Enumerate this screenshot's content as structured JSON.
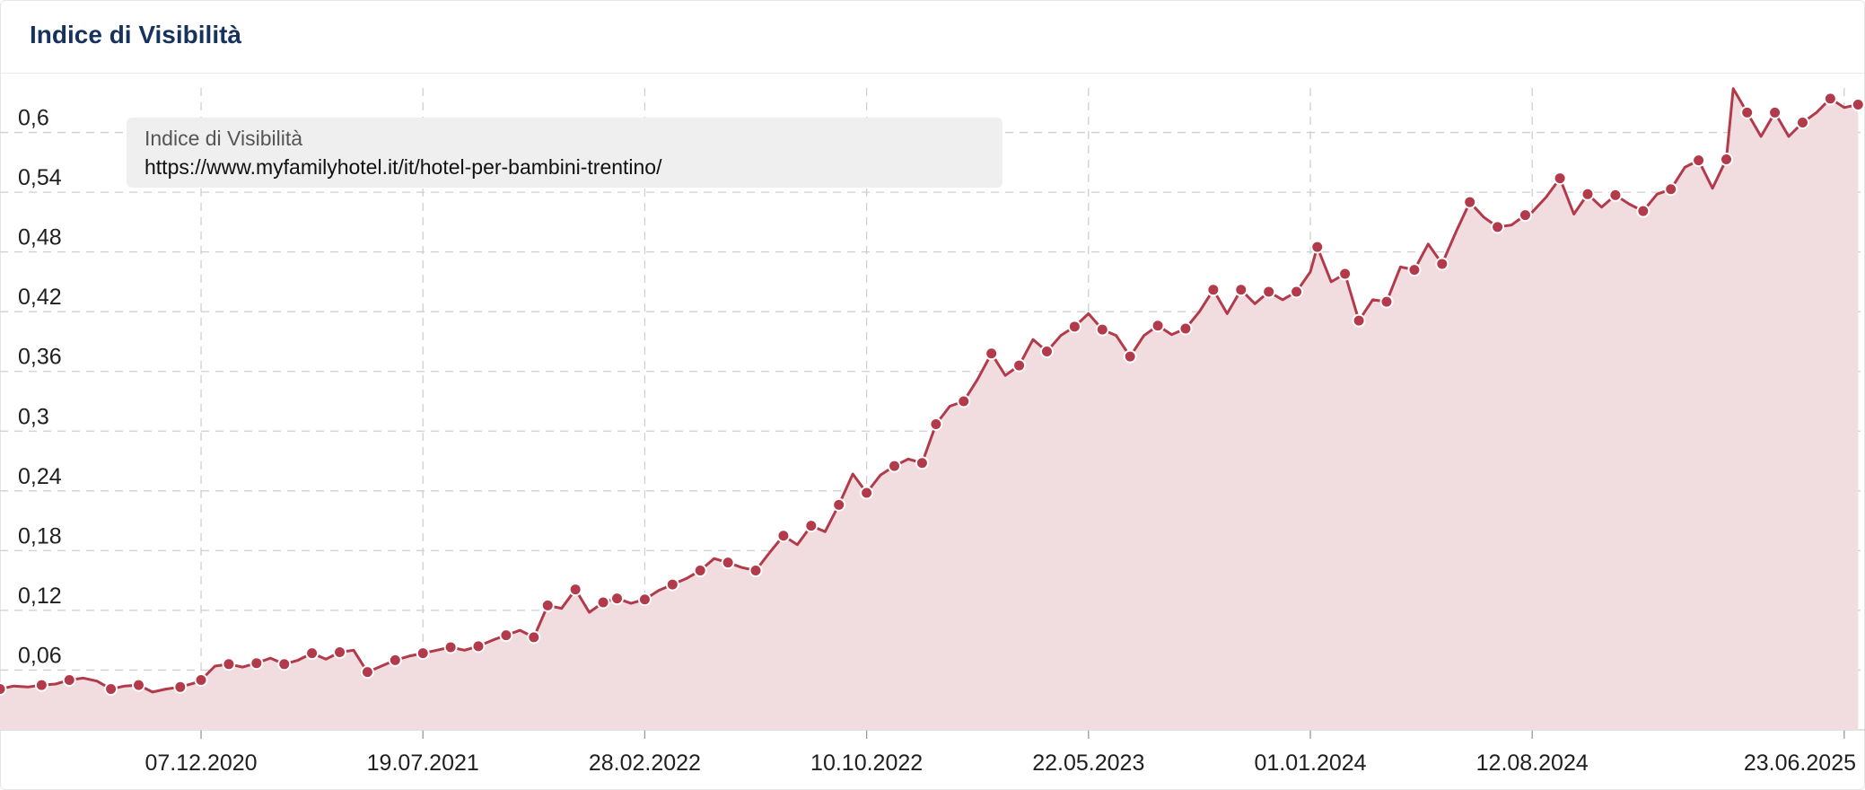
{
  "header": {
    "title": "Indice di Visibilità"
  },
  "colors": {
    "line": "#b23a4a",
    "area": "#f1dcdf",
    "grid": "#cfcfcf",
    "legend_bg": "#efefef",
    "title": "#17325c"
  },
  "legend": {
    "title": "Indice di Visibilità",
    "series": "https://www.myfamilyhotel.it/it/hotel-per-bambini-trentino/"
  },
  "chart_data": {
    "type": "area",
    "title": "Indice di Visibilità",
    "series_name": "https://www.myfamilyhotel.it/it/hotel-per-bambini-trentino/",
    "ylim": [
      0,
      0.66
    ],
    "y_ticks": [
      "0,06",
      "0,12",
      "0,18",
      "0,24",
      "0,3",
      "0,36",
      "0,42",
      "0,48",
      "0,54",
      "0,6"
    ],
    "y_tick_values": [
      0.06,
      0.12,
      0.18,
      0.24,
      0.3,
      0.36,
      0.42,
      0.48,
      0.54,
      0.6
    ],
    "x_ticks": [
      "07.12.2020",
      "19.07.2021",
      "28.02.2022",
      "10.10.2022",
      "22.05.2023",
      "01.01.2024",
      "12.08.2024",
      "23.06.2025"
    ],
    "xlim": [
      "2020-05-18",
      "2025-07-14"
    ],
    "grid": true,
    "legend_position": "top-left",
    "points": [
      [
        "2020-05-18",
        0.041
      ],
      [
        "2020-06-01",
        0.044
      ],
      [
        "2020-06-15",
        0.043
      ],
      [
        "2020-06-29",
        0.045
      ],
      [
        "2020-07-13",
        0.046
      ],
      [
        "2020-07-27",
        0.05
      ],
      [
        "2020-08-10",
        0.052
      ],
      [
        "2020-08-24",
        0.049
      ],
      [
        "2020-09-07",
        0.041
      ],
      [
        "2020-09-21",
        0.044
      ],
      [
        "2020-10-05",
        0.045
      ],
      [
        "2020-10-19",
        0.038
      ],
      [
        "2020-11-02",
        0.041
      ],
      [
        "2020-11-16",
        0.043
      ],
      [
        "2020-11-30",
        0.047
      ],
      [
        "2020-12-07",
        0.05
      ],
      [
        "2020-12-21",
        0.064
      ],
      [
        "2021-01-04",
        0.066
      ],
      [
        "2021-01-18",
        0.063
      ],
      [
        "2021-02-01",
        0.067
      ],
      [
        "2021-02-15",
        0.072
      ],
      [
        "2021-03-01",
        0.066
      ],
      [
        "2021-03-15",
        0.07
      ],
      [
        "2021-03-29",
        0.077
      ],
      [
        "2021-04-12",
        0.071
      ],
      [
        "2021-04-26",
        0.078
      ],
      [
        "2021-05-10",
        0.08
      ],
      [
        "2021-05-24",
        0.058
      ],
      [
        "2021-06-07",
        0.064
      ],
      [
        "2021-06-21",
        0.07
      ],
      [
        "2021-07-05",
        0.074
      ],
      [
        "2021-07-19",
        0.077
      ],
      [
        "2021-08-02",
        0.08
      ],
      [
        "2021-08-16",
        0.083
      ],
      [
        "2021-08-30",
        0.08
      ],
      [
        "2021-09-13",
        0.084
      ],
      [
        "2021-09-27",
        0.09
      ],
      [
        "2021-10-11",
        0.095
      ],
      [
        "2021-10-25",
        0.1
      ],
      [
        "2021-11-08",
        0.093
      ],
      [
        "2021-11-22",
        0.125
      ],
      [
        "2021-12-06",
        0.122
      ],
      [
        "2021-12-20",
        0.141
      ],
      [
        "2022-01-03",
        0.118
      ],
      [
        "2022-01-17",
        0.128
      ],
      [
        "2022-01-31",
        0.132
      ],
      [
        "2022-02-14",
        0.127
      ],
      [
        "2022-02-28",
        0.131
      ],
      [
        "2022-03-14",
        0.14
      ],
      [
        "2022-03-28",
        0.146
      ],
      [
        "2022-04-11",
        0.152
      ],
      [
        "2022-04-25",
        0.16
      ],
      [
        "2022-05-09",
        0.172
      ],
      [
        "2022-05-23",
        0.168
      ],
      [
        "2022-06-06",
        0.163
      ],
      [
        "2022-06-20",
        0.16
      ],
      [
        "2022-07-04",
        0.178
      ],
      [
        "2022-07-18",
        0.195
      ],
      [
        "2022-08-01",
        0.186
      ],
      [
        "2022-08-15",
        0.205
      ],
      [
        "2022-08-29",
        0.199
      ],
      [
        "2022-09-12",
        0.226
      ],
      [
        "2022-09-26",
        0.257
      ],
      [
        "2022-10-10",
        0.238
      ],
      [
        "2022-10-24",
        0.256
      ],
      [
        "2022-11-07",
        0.265
      ],
      [
        "2022-11-21",
        0.272
      ],
      [
        "2022-12-05",
        0.268
      ],
      [
        "2022-12-19",
        0.307
      ],
      [
        "2023-01-02",
        0.325
      ],
      [
        "2023-01-16",
        0.33
      ],
      [
        "2023-01-30",
        0.352
      ],
      [
        "2023-02-13",
        0.378
      ],
      [
        "2023-02-27",
        0.356
      ],
      [
        "2023-03-13",
        0.366
      ],
      [
        "2023-03-27",
        0.392
      ],
      [
        "2023-04-10",
        0.38
      ],
      [
        "2023-04-24",
        0.396
      ],
      [
        "2023-05-08",
        0.405
      ],
      [
        "2023-05-22",
        0.418
      ],
      [
        "2023-06-05",
        0.402
      ],
      [
        "2023-06-19",
        0.396
      ],
      [
        "2023-07-03",
        0.375
      ],
      [
        "2023-07-17",
        0.396
      ],
      [
        "2023-07-31",
        0.406
      ],
      [
        "2023-08-14",
        0.397
      ],
      [
        "2023-08-28",
        0.403
      ],
      [
        "2023-09-11",
        0.42
      ],
      [
        "2023-09-25",
        0.442
      ],
      [
        "2023-10-09",
        0.418
      ],
      [
        "2023-10-23",
        0.442
      ],
      [
        "2023-11-06",
        0.428
      ],
      [
        "2023-11-20",
        0.44
      ],
      [
        "2023-12-04",
        0.432
      ],
      [
        "2023-12-18",
        0.44
      ],
      [
        "2024-01-01",
        0.46
      ],
      [
        "2024-01-08",
        0.485
      ],
      [
        "2024-01-22",
        0.45
      ],
      [
        "2024-02-05",
        0.458
      ],
      [
        "2024-02-19",
        0.411
      ],
      [
        "2024-03-04",
        0.432
      ],
      [
        "2024-03-18",
        0.43
      ],
      [
        "2024-04-01",
        0.465
      ],
      [
        "2024-04-15",
        0.462
      ],
      [
        "2024-04-29",
        0.488
      ],
      [
        "2024-05-13",
        0.468
      ],
      [
        "2024-05-27",
        0.5
      ],
      [
        "2024-06-10",
        0.53
      ],
      [
        "2024-06-24",
        0.515
      ],
      [
        "2024-07-08",
        0.505
      ],
      [
        "2024-07-22",
        0.507
      ],
      [
        "2024-08-05",
        0.517
      ],
      [
        "2024-08-12",
        0.52
      ],
      [
        "2024-08-26",
        0.535
      ],
      [
        "2024-09-09",
        0.554
      ],
      [
        "2024-09-23",
        0.518
      ],
      [
        "2024-10-07",
        0.538
      ],
      [
        "2024-10-21",
        0.525
      ],
      [
        "2024-11-04",
        0.537
      ],
      [
        "2024-11-18",
        0.528
      ],
      [
        "2024-12-02",
        0.521
      ],
      [
        "2024-12-16",
        0.538
      ],
      [
        "2024-12-30",
        0.543
      ],
      [
        "2025-01-13",
        0.565
      ],
      [
        "2025-01-27",
        0.572
      ],
      [
        "2025-02-10",
        0.544
      ],
      [
        "2025-02-24",
        0.573
      ],
      [
        "2025-03-03",
        0.644
      ],
      [
        "2025-03-17",
        0.62
      ],
      [
        "2025-03-31",
        0.596
      ],
      [
        "2025-04-14",
        0.62
      ],
      [
        "2025-04-28",
        0.596
      ],
      [
        "2025-05-12",
        0.61
      ],
      [
        "2025-05-26",
        0.62
      ],
      [
        "2025-06-09",
        0.634
      ],
      [
        "2025-06-23",
        0.625
      ],
      [
        "2025-07-07",
        0.628
      ]
    ],
    "marker_dates": [
      "2020-05-18",
      "2020-06-29",
      "2020-07-27",
      "2020-09-07",
      "2020-10-05",
      "2020-11-16",
      "2020-12-07",
      "2021-01-04",
      "2021-02-01",
      "2021-03-01",
      "2021-03-29",
      "2021-04-26",
      "2021-05-24",
      "2021-06-21",
      "2021-07-19",
      "2021-08-16",
      "2021-09-13",
      "2021-10-11",
      "2021-11-08",
      "2021-11-22",
      "2021-12-20",
      "2022-01-17",
      "2022-01-31",
      "2022-02-28",
      "2022-03-28",
      "2022-04-25",
      "2022-05-23",
      "2022-06-20",
      "2022-07-18",
      "2022-08-15",
      "2022-09-12",
      "2022-10-10",
      "2022-11-07",
      "2022-12-05",
      "2022-12-19",
      "2023-01-16",
      "2023-02-13",
      "2023-03-13",
      "2023-04-10",
      "2023-05-08",
      "2023-06-05",
      "2023-07-03",
      "2023-07-31",
      "2023-08-28",
      "2023-09-25",
      "2023-10-23",
      "2023-11-20",
      "2023-12-18",
      "2024-01-08",
      "2024-02-05",
      "2024-02-19",
      "2024-03-18",
      "2024-04-15",
      "2024-05-13",
      "2024-06-10",
      "2024-07-08",
      "2024-08-05",
      "2024-09-09",
      "2024-10-07",
      "2024-11-04",
      "2024-12-02",
      "2024-12-30",
      "2025-01-27",
      "2025-02-24",
      "2025-03-17",
      "2025-04-14",
      "2025-05-12",
      "2025-06-09",
      "2025-07-07"
    ]
  }
}
